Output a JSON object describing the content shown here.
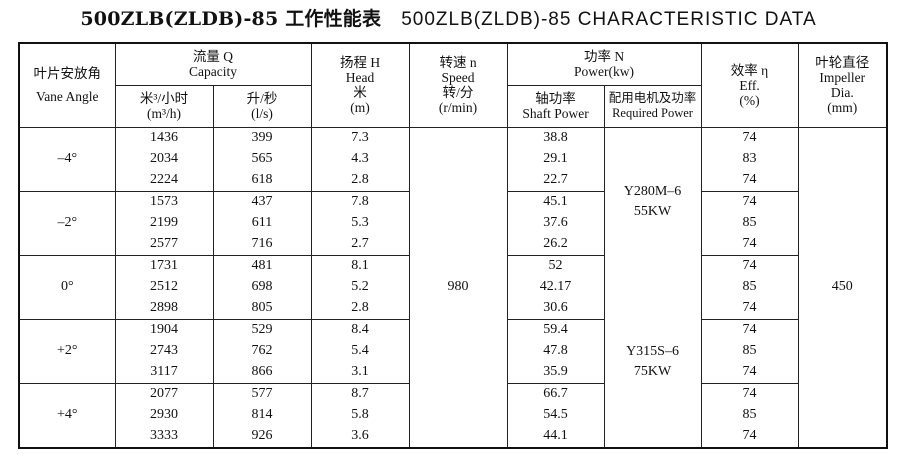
{
  "title": {
    "cn": "500ZLB(ZLDB)-85 工作性能表",
    "en": "500ZLB(ZLDB)-85  CHARACTERISTIC DATA"
  },
  "headers": {
    "vane_angle": [
      "叶片安放角",
      "Vane Angle"
    ],
    "capacity": [
      "流量 Q",
      "Capacity"
    ],
    "capacity_m3h": [
      "米³/小时",
      "(m³/h)"
    ],
    "capacity_ls": [
      "升/秒",
      "(l/s)"
    ],
    "head": [
      "扬程 H",
      "Head",
      "米",
      "(m)"
    ],
    "speed": [
      "转速 n",
      "Speed",
      "转/分",
      "(r/min)"
    ],
    "power": [
      "功率 N",
      "Power(kw)"
    ],
    "shaft_power": [
      "轴功率",
      "Shaft Power"
    ],
    "motor": [
      "配用电机及功率",
      "Required Power"
    ],
    "eff": [
      "效率 η",
      "Eff.",
      "(%)"
    ],
    "impeller": [
      "叶轮直径",
      "Impeller",
      "Dia.",
      "(mm)"
    ]
  },
  "speed_value": "980",
  "impeller_value": "450",
  "motors": [
    {
      "model": "Y280M–6",
      "power": "55KW"
    },
    {
      "model": "Y315S–6",
      "power": "75KW"
    }
  ],
  "groups": [
    {
      "angle": "–4°",
      "rows": [
        {
          "q_m3h": "1436",
          "q_ls": "399",
          "head": "7.3",
          "shaft": "38.8",
          "eff": "74"
        },
        {
          "q_m3h": "2034",
          "q_ls": "565",
          "head": "4.3",
          "shaft": "29.1",
          "eff": "83"
        },
        {
          "q_m3h": "2224",
          "q_ls": "618",
          "head": "2.8",
          "shaft": "22.7",
          "eff": "74"
        }
      ]
    },
    {
      "angle": "–2°",
      "rows": [
        {
          "q_m3h": "1573",
          "q_ls": "437",
          "head": "7.8",
          "shaft": "45.1",
          "eff": "74"
        },
        {
          "q_m3h": "2199",
          "q_ls": "611",
          "head": "5.3",
          "shaft": "37.6",
          "eff": "85"
        },
        {
          "q_m3h": "2577",
          "q_ls": "716",
          "head": "2.7",
          "shaft": "26.2",
          "eff": "74"
        }
      ]
    },
    {
      "angle": "0°",
      "rows": [
        {
          "q_m3h": "1731",
          "q_ls": "481",
          "head": "8.1",
          "shaft": "52",
          "eff": "74"
        },
        {
          "q_m3h": "2512",
          "q_ls": "698",
          "head": "5.2",
          "shaft": "42.17",
          "eff": "85"
        },
        {
          "q_m3h": "2898",
          "q_ls": "805",
          "head": "2.8",
          "shaft": "30.6",
          "eff": "74"
        }
      ]
    },
    {
      "angle": "+2°",
      "rows": [
        {
          "q_m3h": "1904",
          "q_ls": "529",
          "head": "8.4",
          "shaft": "59.4",
          "eff": "74"
        },
        {
          "q_m3h": "2743",
          "q_ls": "762",
          "head": "5.4",
          "shaft": "47.8",
          "eff": "85"
        },
        {
          "q_m3h": "3117",
          "q_ls": "866",
          "head": "3.1",
          "shaft": "35.9",
          "eff": "74"
        }
      ]
    },
    {
      "angle": "+4°",
      "rows": [
        {
          "q_m3h": "2077",
          "q_ls": "577",
          "head": "8.7",
          "shaft": "66.7",
          "eff": "74"
        },
        {
          "q_m3h": "2930",
          "q_ls": "814",
          "head": "5.8",
          "shaft": "54.5",
          "eff": "85"
        },
        {
          "q_m3h": "3333",
          "q_ls": "926",
          "head": "3.6",
          "shaft": "44.1",
          "eff": "74"
        }
      ]
    }
  ]
}
